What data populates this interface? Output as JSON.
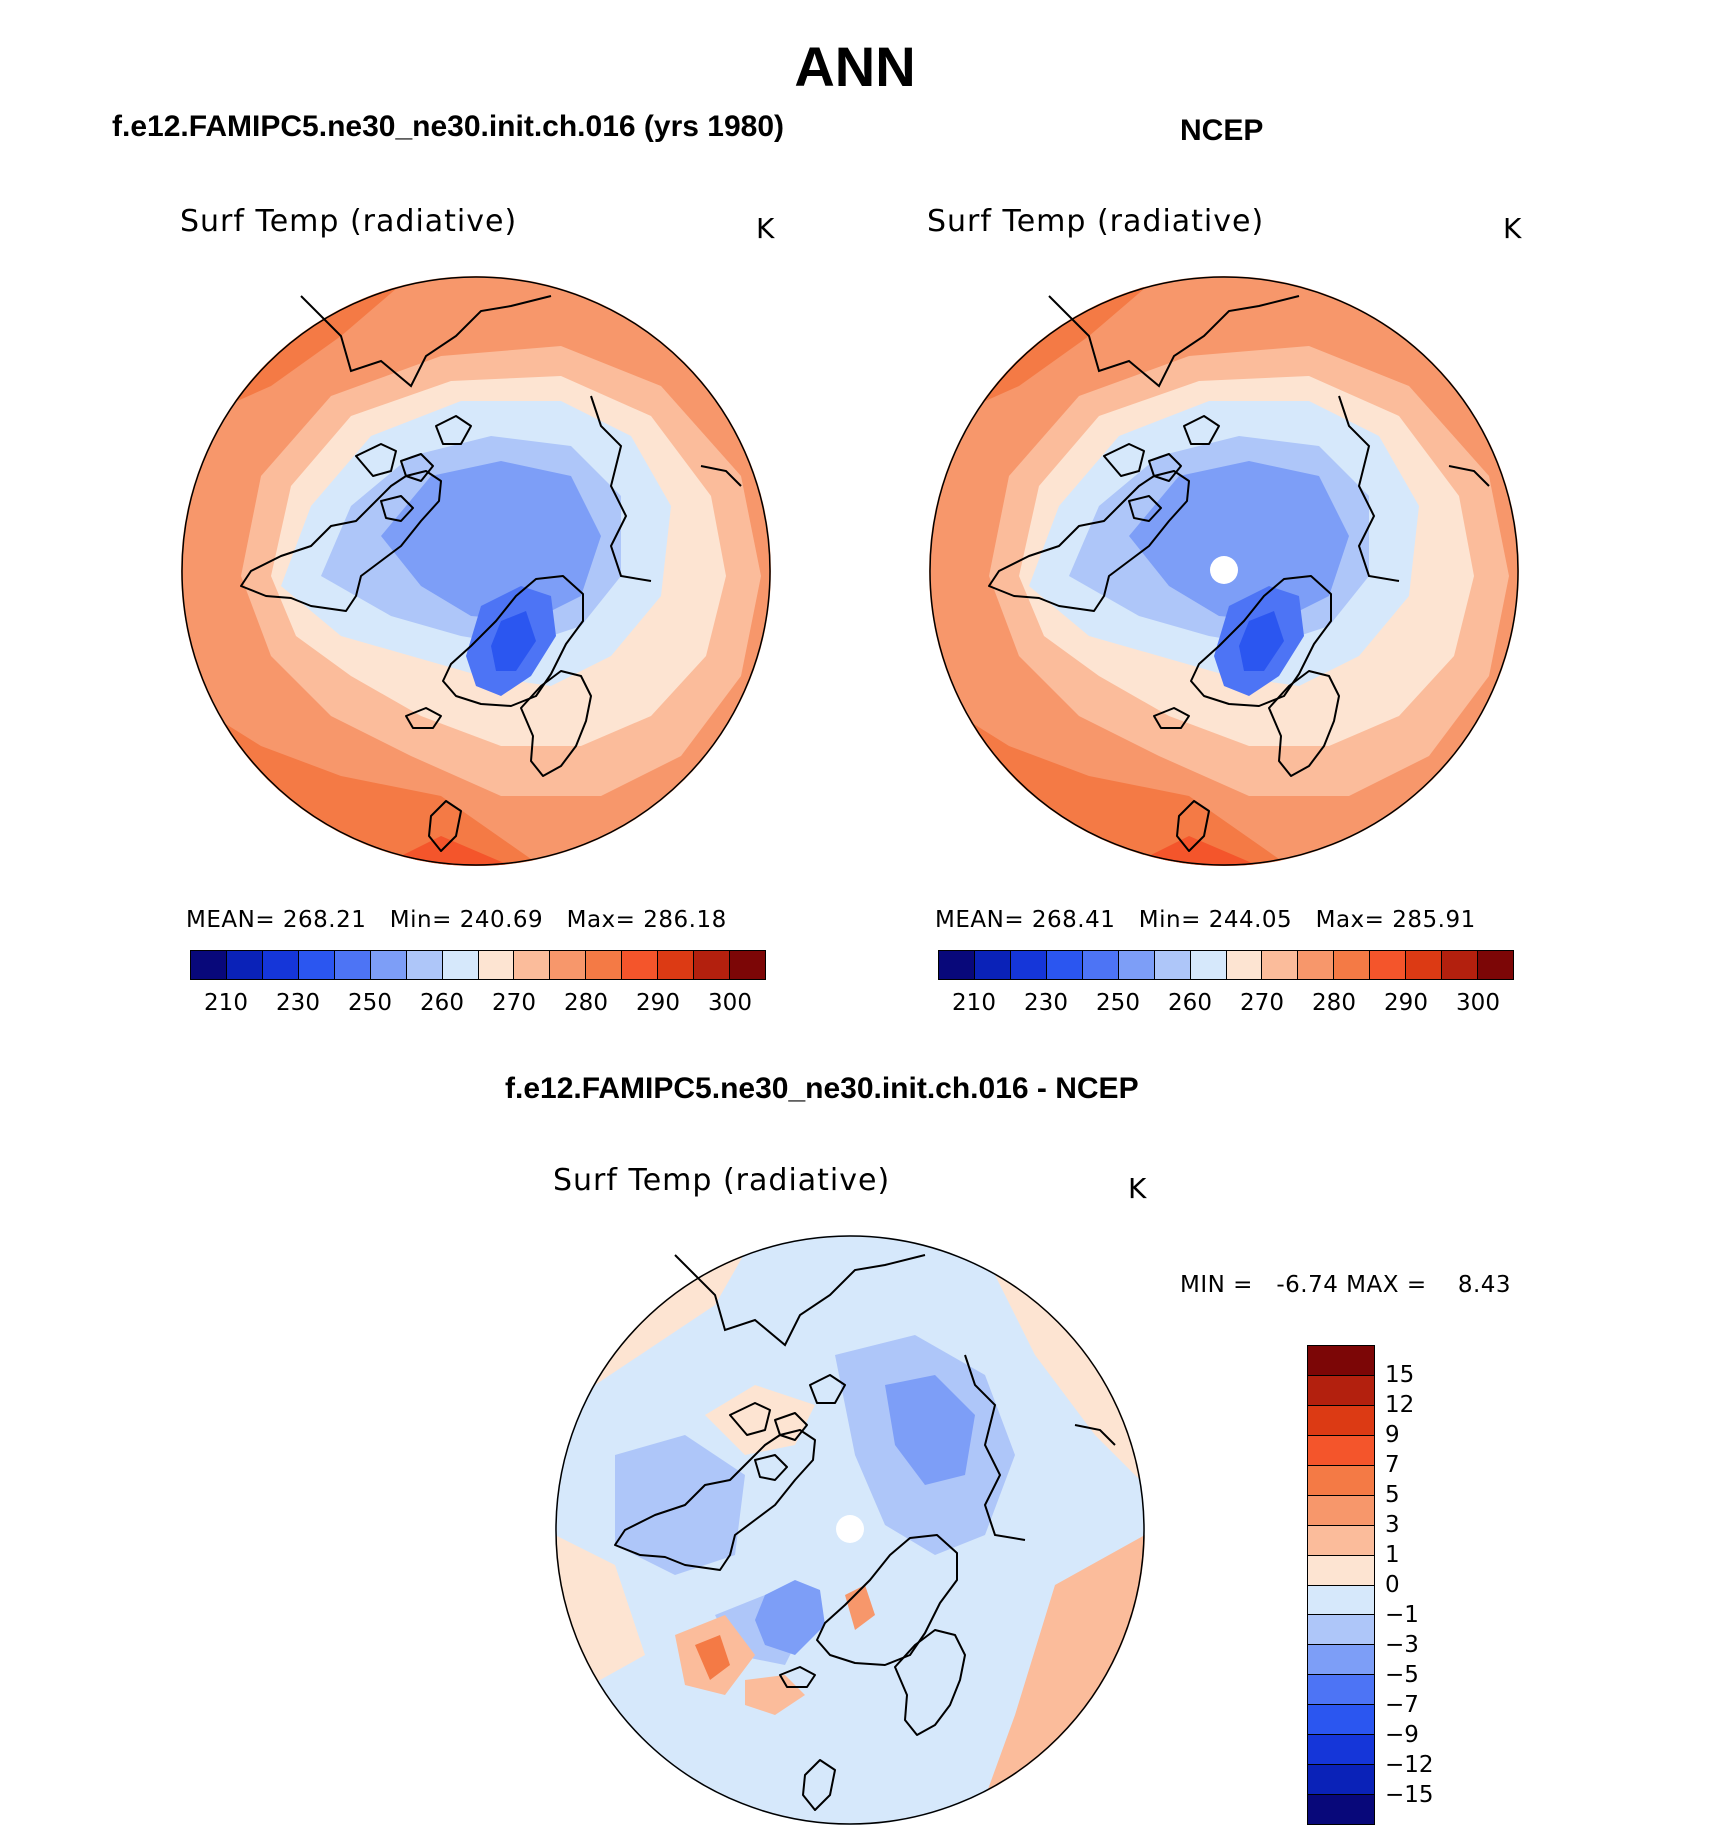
{
  "season": "ANN",
  "palette": {
    "abs": [
      "#08087a",
      "#0a22b8",
      "#1536d9",
      "#2b56f0",
      "#4d74f5",
      "#7d9ef7",
      "#aec6f9",
      "#d6e8fb",
      "#fde4d2",
      "#fbbc9b",
      "#f7976b",
      "#f47a45",
      "#f4552b",
      "#dc3a14",
      "#b3200e",
      "#7c0606"
    ],
    "diff": [
      "#7c0606",
      "#b3200e",
      "#dc3a14",
      "#f4552b",
      "#f47a45",
      "#f7976b",
      "#fbbc9b",
      "#fde4d2",
      "#d6e8fb",
      "#aec6f9",
      "#7d9ef7",
      "#4d74f5",
      "#2b56f0",
      "#1536d9",
      "#0a22b8",
      "#08087a"
    ]
  },
  "panels": {
    "model": {
      "heading": "f.e12.FAMIPC5.ne30_ne30.init.ch.016 (yrs 1980)",
      "variable": "Surf Temp (radiative)",
      "units": "K",
      "stats": "MEAN= 268.21   Min= 240.69   Max= 286.18"
    },
    "obs": {
      "heading": "NCEP",
      "variable": "Surf Temp (radiative)",
      "units": "K",
      "stats": "MEAN= 268.41   Min= 244.05   Max= 285.91"
    },
    "diff": {
      "heading": "f.e12.FAMIPC5.ne30_ne30.init.ch.016 - NCEP",
      "variable": "Surf Temp (radiative)",
      "units": "K",
      "stats": "MIN =   -6.74 MAX =    8.43"
    }
  },
  "chart_data": [
    {
      "type": "heatmap",
      "title": "f.e12.FAMIPC5.ne30_ne30.init.ch.016 (yrs 1980)",
      "projection": "north polar stereographic",
      "variable": "Surf Temp (radiative)",
      "units": "K",
      "mean": 268.21,
      "min": 240.69,
      "max": 286.18,
      "contour_levels": [
        210,
        220,
        230,
        240,
        250,
        255,
        260,
        265,
        270,
        275,
        280,
        285,
        290,
        295,
        300
      ],
      "colorbar_labels": [
        "210",
        "230",
        "250",
        "260",
        "270",
        "280",
        "290",
        "300"
      ]
    },
    {
      "type": "heatmap",
      "title": "NCEP",
      "projection": "north polar stereographic",
      "variable": "Surf Temp (radiative)",
      "units": "K",
      "mean": 268.41,
      "min": 244.05,
      "max": 285.91,
      "contour_levels": [
        210,
        220,
        230,
        240,
        250,
        255,
        260,
        265,
        270,
        275,
        280,
        285,
        290,
        295,
        300
      ],
      "colorbar_labels": [
        "210",
        "230",
        "250",
        "260",
        "270",
        "280",
        "290",
        "300"
      ]
    },
    {
      "type": "heatmap",
      "title": "f.e12.FAMIPC5.ne30_ne30.init.ch.016 - NCEP",
      "projection": "north polar stereographic",
      "variable": "Surf Temp (radiative)",
      "units": "K",
      "min": -6.74,
      "max": 8.43,
      "contour_levels": [
        -15,
        -12,
        -9,
        -7,
        -5,
        -3,
        -1,
        0,
        1,
        3,
        5,
        7,
        9,
        12,
        15
      ],
      "colorbar_labels": [
        "15",
        "12",
        "9",
        "7",
        "5",
        "3",
        "1",
        "0",
        "−1",
        "−3",
        "−5",
        "−7",
        "−9",
        "−12",
        "−15"
      ]
    }
  ]
}
